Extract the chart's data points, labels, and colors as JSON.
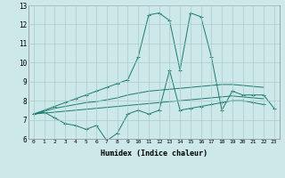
{
  "xlabel": "Humidex (Indice chaleur)",
  "xlim": [
    -0.5,
    23.5
  ],
  "ylim": [
    6,
    13
  ],
  "yticks": [
    6,
    7,
    8,
    9,
    10,
    11,
    12,
    13
  ],
  "xticks": [
    0,
    1,
    2,
    3,
    4,
    5,
    6,
    7,
    8,
    9,
    10,
    11,
    12,
    13,
    14,
    15,
    16,
    17,
    18,
    19,
    20,
    21,
    22,
    23
  ],
  "bg_color": "#cce8e8",
  "grid_color": "#b8d8d8",
  "line_color": "#1a7a6e",
  "series": [
    [
      7.3,
      7.4,
      7.1,
      6.8,
      6.7,
      6.5,
      6.7,
      5.9,
      6.3,
      7.3,
      7.5,
      7.3,
      7.5,
      9.6,
      7.5,
      7.6,
      7.7,
      7.8,
      7.9,
      8.0,
      8.0,
      7.9,
      7.8
    ],
    [
      7.3,
      7.35,
      7.4,
      7.45,
      7.5,
      7.55,
      7.6,
      7.65,
      7.7,
      7.75,
      7.8,
      7.85,
      7.9,
      7.95,
      8.0,
      8.05,
      8.1,
      8.15,
      8.2,
      8.25,
      8.2,
      8.15,
      8.1
    ],
    [
      7.3,
      7.45,
      7.6,
      7.7,
      7.8,
      7.9,
      7.95,
      8.05,
      8.15,
      8.3,
      8.4,
      8.5,
      8.55,
      8.6,
      8.65,
      8.7,
      8.75,
      8.8,
      8.85,
      8.85,
      8.8,
      8.75,
      8.7
    ],
    [
      7.3,
      7.5,
      7.7,
      7.9,
      8.1,
      8.3,
      8.5,
      8.7,
      8.9,
      9.1,
      10.3,
      12.5,
      12.6,
      12.2,
      9.6,
      12.6,
      12.4,
      10.3,
      7.5,
      8.5,
      8.3,
      8.3,
      8.3,
      7.6
    ]
  ],
  "has_markers": [
    true,
    false,
    false,
    true
  ]
}
